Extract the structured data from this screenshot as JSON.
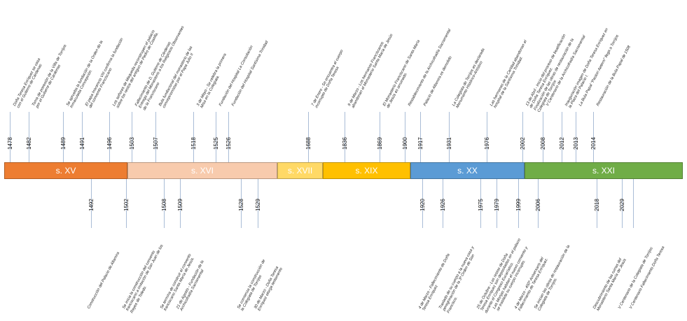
{
  "centuries": [
    {
      "label": "s. XV",
      "color": "#ed7d31"
    },
    {
      "label": "s. XVI",
      "color": "#f8cbad"
    },
    {
      "label": "s. XVII",
      "color": "#ffd966"
    },
    {
      "label": "s. XIX",
      "color": "#ffc000"
    },
    {
      "label": "s. XX",
      "color": "#5b9bd5"
    },
    {
      "label": "s. XXI",
      "color": "#70ad47"
    }
  ],
  "events_top": [
    {
      "year": "1478",
      "text": "Doña Teresa Enríquez se casa\ncon el Gutierre de Cárdenas"
    },
    {
      "year": "1482",
      "text": "Toma de posesión de la Villa de Torrijos\npor el Gutierre de Cárdenas"
    },
    {
      "year": "1489",
      "text": "Se aprueba la fundación de la Orden de la\nInmaculada Concepción."
    },
    {
      "year": "1491",
      "text": "El papa Inocencio VIII confirma la fundación\ndel convento Franciscano"
    },
    {
      "year": "1496",
      "text": "Los señores de Maqueda reconstruyen el palacio\nsobre los restos del antiguo de Pedro de Castilla."
    },
    {
      "year": "1503",
      "text": "Fallecimiento de D. Gutierre de Cárdenas\nEntrega del Monasterio a los Religiosos Observantes\nde la Franciscano"
    },
    {
      "year": "1507",
      "text": "Bula fundacional del monasterio de las\nconcepcionistas por el Papa Julio II"
    },
    {
      "year": "1518",
      "text": "3 de Mayo - Se celebra la primera\nMisa en la Colegiata."
    },
    {
      "year": "1525",
      "text": "Fundación del Hospital La Consolación"
    },
    {
      "year": "1526",
      "text": "Fundación del Hospital Santísima Trinidad"
    },
    {
      "year": "1688",
      "text": "7 de Enero - Se encuentra el cuerpo\nincorrupto de Doña Teresa"
    },
    {
      "year": "1836",
      "text": "9 de Marzo - Los hermanos Franciscanos\nabandonan el Monasterio Santa María de Jesús"
    },
    {
      "year": "1869",
      "text": "El Monasterio Franciscano de Santa María\nde Jesús es arruinado."
    },
    {
      "year": "1900",
      "text": "Restablecimiento de la Archicofradía Sacramental"
    },
    {
      "year": "1917",
      "text": "Palacio de Altamira es demolido"
    },
    {
      "year": "1931",
      "text": "La Colegiata de Torrijos es declarada\nMonumento Histórico-Artístico"
    },
    {
      "year": "1976",
      "text": "Las hermanas de la Caridad abandonan el\nhospital de la Santísima Trinidad."
    },
    {
      "year": "2002",
      "text": "13 de Abril - Inicio del proceso de beatificación\nde Doña Teresa Enríquez.\nFinalización de las obras de restauración de la\nColegiata de Torrijos"
    },
    {
      "year": "2008",
      "text": "V Centenario de la Archicofradía Sacramental"
    },
    {
      "year": "2012",
      "text": "Inauguración imagen de Doña Teresa Enríquez en\nla Plaza del Palacio I."
    },
    {
      "year": "2013",
      "text": "La Bula Papal \"Pastori Aeterni\" llega a Torrijos"
    },
    {
      "year": "2014",
      "text": "Restauración de la Bula Papal de 1508"
    }
  ],
  "events_bottom": [
    {
      "year": "1492",
      "text": "Construcción del Palacio de Altamira"
    },
    {
      "year": "1502",
      "text": "Se inicia la construcción del convento\nfranciscano a imitación de San Juan de los\nReyes de Toledo."
    },
    {
      "year": "1508",
      "text": "Se termina de construir el convento\nfranciscano Santa María de Jesús."
    },
    {
      "year": "1509",
      "text": "21 de Agosto - Fundación de la\nArchicofradía Sacramental"
    },
    {
      "year": "1528",
      "text": "Se comienza la construcción de\nla Colegiata de Torrijos"
    },
    {
      "year": "1529",
      "text": "30 de Marzo - Doña Teresa\nEnríquez otorga testamento"
    },
    {
      "year": "1920",
      "text": "4 de Marzo - Fallecimiento de Doña\nTeresa Enríquez"
    },
    {
      "year": "1926",
      "text": "Traslado de su cuerpo a la nueva casa y\nperegrinación de la 3ª Orden de San\nFrancisco."
    },
    {
      "year": "1975",
      "text": "25 de Octubre - Los restos de Doña\nTeresa Enríquez son depositados en el palacio\ndurante el Congreso Eucarístico."
    },
    {
      "year": "1979",
      "text": "Las Monjas habitan el nuevo convento y\nse traslada su cuerpo incorrupto."
    },
    {
      "year": "1999",
      "text": "4 de Marzo - 450º Aniversario del\nFallecimiento de Teresa Enríquez."
    },
    {
      "year": "2006",
      "text": "Se inician las obras de restauración de la\nColegiata de Torrijos."
    },
    {
      "year": "2018",
      "text": "Descubrimiento de las ruinas del\nMonasterio Santa María de Jesús"
    },
    {
      "year": "2029",
      "text": "V Centenario de la Colegiata de Torrijos"
    },
    {
      "year": "",
      "text": "V Centenario Fallecimiento Doña Teresa"
    }
  ]
}
